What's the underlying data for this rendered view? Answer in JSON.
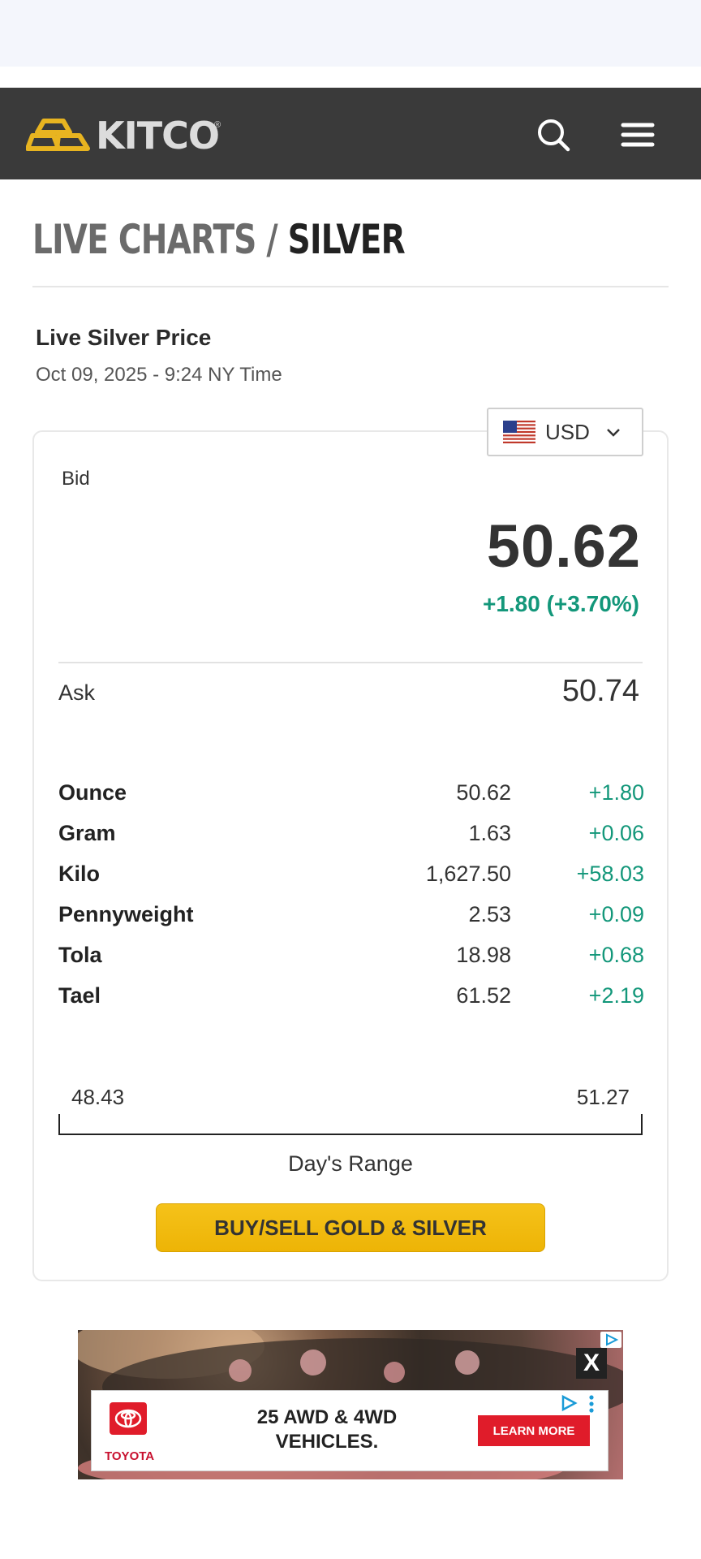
{
  "header": {
    "logo_text": "KITCO",
    "logo_reg": "®",
    "search_icon": "search-icon",
    "menu_icon": "menu-icon"
  },
  "page": {
    "title_prefix": "LIVE CHARTS /",
    "title_metal": "SILVER"
  },
  "live": {
    "label": "Live Silver Price",
    "timestamp": "Oct 09, 2025 - 9:24 NY Time"
  },
  "currency": {
    "selected": "USD",
    "flag_icon": "us-flag-icon"
  },
  "quote": {
    "bid_label": "Bid",
    "bid": "50.62",
    "change": "+1.80 (+3.70%)",
    "ask_label": "Ask",
    "ask": "50.74"
  },
  "units": [
    {
      "name": "Ounce",
      "value": "50.62",
      "change": "+1.80"
    },
    {
      "name": "Gram",
      "value": "1.63",
      "change": "+0.06"
    },
    {
      "name": "Kilo",
      "value": "1,627.50",
      "change": "+58.03"
    },
    {
      "name": "Pennyweight",
      "value": "2.53",
      "change": "+0.09"
    },
    {
      "name": "Tola",
      "value": "18.98",
      "change": "+0.68"
    },
    {
      "name": "Tael",
      "value": "61.52",
      "change": "+2.19"
    }
  ],
  "range": {
    "low": "48.43",
    "high": "51.27",
    "label": "Day's Range"
  },
  "buy_button": "BUY/SELL GOLD & SILVER",
  "ad": {
    "close": "X",
    "brand": "TOYOTA",
    "headline": "25 AWD & 4WD VEHICLES.",
    "cta": "LEARN MORE"
  },
  "colors": {
    "header_bg": "#3a3a3a",
    "logo_gold": "#e8b420",
    "positive": "#13977a",
    "button_gold": "#f5c21a"
  }
}
